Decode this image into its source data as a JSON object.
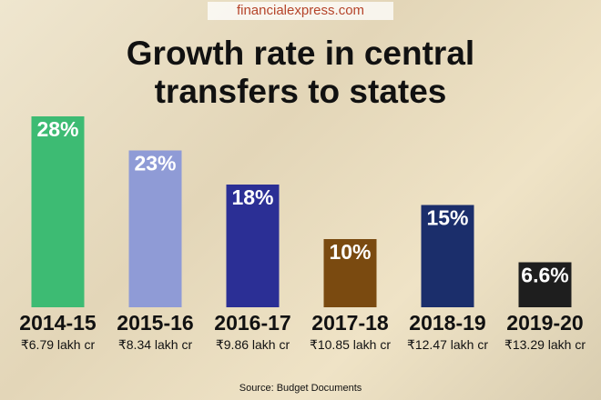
{
  "site": "financialexpress.com",
  "chart_data": {
    "type": "bar",
    "title": "Growth rate in central transfers to states",
    "categories": [
      "2014-15",
      "2015-16",
      "2016-17",
      "2017-18",
      "2018-19",
      "2019-20"
    ],
    "sublabels": [
      "₹6.79 lakh cr",
      "₹8.34 lakh cr",
      "₹9.86 lakh cr",
      "₹10.85 lakh cr",
      "₹12.47 lakh cr",
      "₹13.29 lakh cr"
    ],
    "values": [
      28,
      23,
      18,
      10,
      15,
      6.6
    ],
    "value_labels": [
      "28%",
      "23%",
      "18%",
      "10%",
      "15%",
      "6.6%"
    ],
    "colors": [
      "#3dbb73",
      "#8f9bd6",
      "#2b2f95",
      "#7a4a10",
      "#1b2e6b",
      "#1e1e1e"
    ],
    "source": "Source: Budget Documents"
  }
}
